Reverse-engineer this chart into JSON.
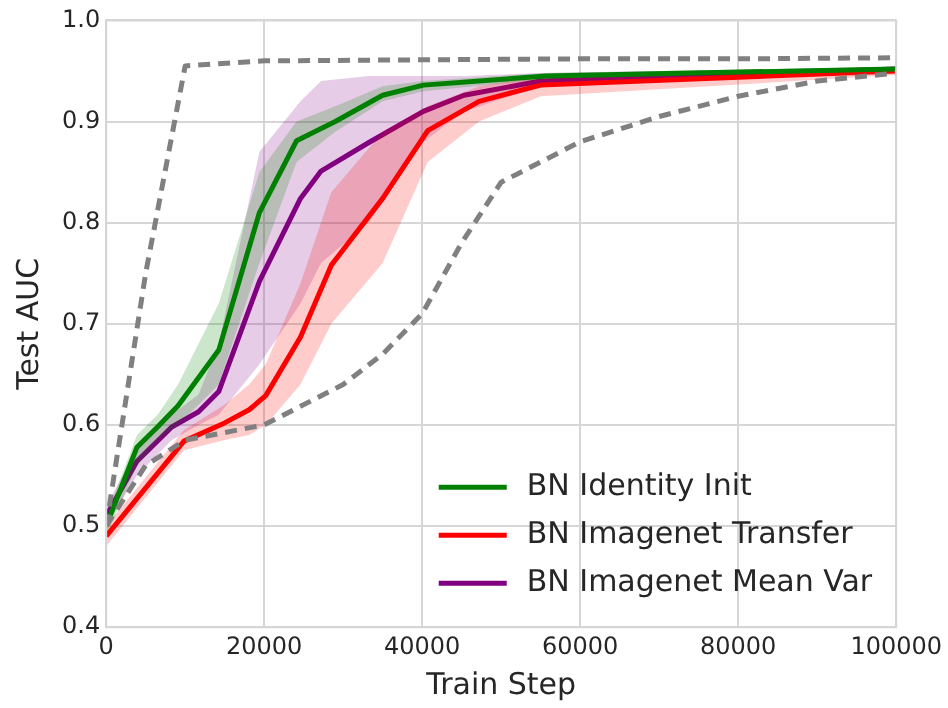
{
  "chart_data": {
    "type": "line",
    "xlabel": "Train Step",
    "ylabel": "Test AUC",
    "xlim": [
      0,
      100000
    ],
    "ylim": [
      0.4,
      1.0
    ],
    "xticks": [
      0,
      20000,
      40000,
      60000,
      80000,
      100000
    ],
    "yticks": [
      0.4,
      0.5,
      0.6,
      0.7,
      0.8,
      0.9,
      {
        "value": 1.0,
        "label": "1.0"
      }
    ],
    "grid": true,
    "legend": "bottom right",
    "marker": "none",
    "series": [
      {
        "color": "#808080",
        "line_style": "dashed",
        "x": [
          0,
          5000,
          10000,
          20000,
          40000,
          60000,
          80000,
          100000
        ],
        "values": [
          0.5,
          0.75,
          0.955,
          0.96,
          0.961,
          0.962,
          0.962,
          0.963
        ]
      },
      {
        "color": "#808080",
        "line_style": "dashed",
        "x": [
          0,
          5000,
          10000,
          20000,
          30000,
          35000,
          40000,
          45000,
          50000,
          60000,
          70000,
          80000,
          90000,
          100000
        ],
        "values": [
          0.5,
          0.56,
          0.585,
          0.6,
          0.64,
          0.67,
          0.71,
          0.78,
          0.84,
          0.88,
          0.905,
          0.925,
          0.94,
          0.948
        ]
      },
      {
        "name": "BN Identity Init",
        "color": "#008000",
        "x": [
          0,
          3900,
          6500,
          9100,
          14250,
          19400,
          24100,
          29000,
          35000,
          40150,
          55700,
          100000
        ],
        "values": [
          0.5,
          0.578,
          0.598,
          0.619,
          0.674,
          0.81,
          0.881,
          0.9,
          0.926,
          0.936,
          0.945,
          0.952
        ],
        "lower": [
          0.49,
          0.56,
          0.585,
          0.6,
          0.64,
          0.76,
          0.86,
          0.89,
          0.92,
          0.93,
          0.942,
          0.95
        ],
        "upper": [
          0.51,
          0.59,
          0.61,
          0.64,
          0.72,
          0.85,
          0.9,
          0.915,
          0.935,
          0.94,
          0.948,
          0.954
        ]
      },
      {
        "name": "BN Imagenet Transfer",
        "color": "#ff0000",
        "x": [
          0,
          9850,
          15000,
          18100,
          20200,
          24600,
          28500,
          35000,
          40700,
          47200,
          55000,
          100000
        ],
        "values": [
          0.49,
          0.584,
          0.602,
          0.615,
          0.629,
          0.687,
          0.758,
          0.824,
          0.891,
          0.92,
          0.936,
          0.95
        ],
        "lower": [
          0.48,
          0.575,
          0.585,
          0.59,
          0.6,
          0.64,
          0.7,
          0.76,
          0.86,
          0.9,
          0.925,
          0.946
        ],
        "upper": [
          0.5,
          0.595,
          0.62,
          0.64,
          0.66,
          0.74,
          0.83,
          0.89,
          0.915,
          0.935,
          0.945,
          0.953
        ]
      },
      {
        "name": "BN Imagenet Mean Var",
        "color": "#800080",
        "x": [
          0,
          3900,
          8300,
          11700,
          14250,
          19400,
          24600,
          27200,
          33200,
          40150,
          45300,
          55000,
          100000
        ],
        "values": [
          0.51,
          0.564,
          0.598,
          0.613,
          0.633,
          0.742,
          0.824,
          0.851,
          0.879,
          0.91,
          0.926,
          0.94,
          0.952
        ],
        "lower": [
          0.5,
          0.55,
          0.585,
          0.6,
          0.61,
          0.66,
          0.72,
          0.76,
          0.8,
          0.88,
          0.91,
          0.935,
          0.95
        ],
        "upper": [
          0.52,
          0.575,
          0.61,
          0.63,
          0.68,
          0.87,
          0.92,
          0.94,
          0.945,
          0.945,
          0.945,
          0.948,
          0.954
        ]
      }
    ]
  }
}
